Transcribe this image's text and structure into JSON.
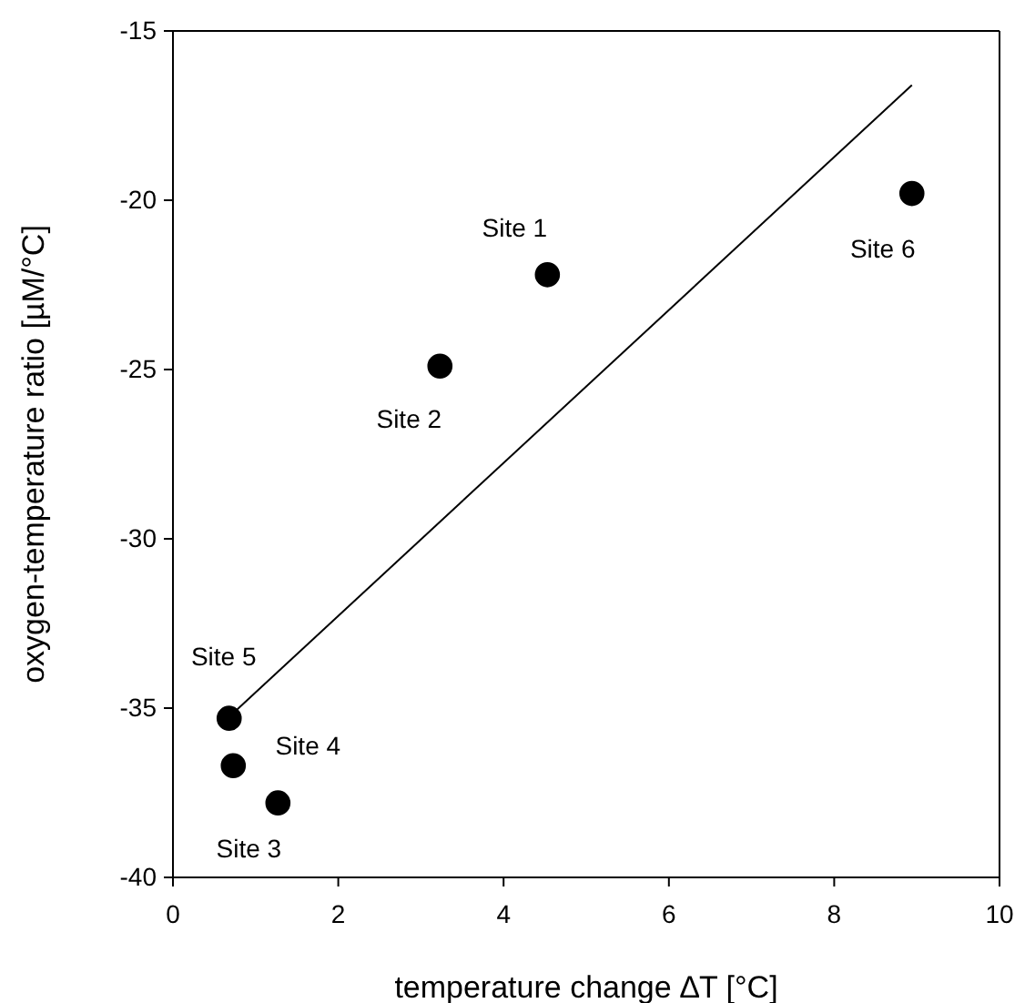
{
  "chart_data": {
    "type": "scatter",
    "xlabel": "temperature change ∆T [°C]",
    "ylabel": "oxygen-temperature ratio [µM/°C]",
    "xlim": [
      0,
      10
    ],
    "xticks": [
      0,
      2,
      4,
      6,
      8,
      10
    ],
    "ylim": [
      -40,
      -15
    ],
    "yticks": [
      -40,
      -35,
      -30,
      -25,
      -20,
      -15
    ],
    "grid": false,
    "marker": "circle",
    "series": [
      {
        "color": "#000000",
        "x": [
          4.53,
          3.23,
          1.27,
          0.73,
          0.68,
          8.94
        ],
        "values": [
          -22.2,
          -24.9,
          -37.8,
          -36.7,
          -35.3,
          -19.8
        ]
      },
      {
        "type": "line",
        "color": "#000000",
        "line_style": "solid",
        "marker": "none",
        "x": [
          0.75,
          8.94
        ],
        "values": [
          -35.1,
          -16.6
        ]
      }
    ],
    "annotations": [
      {
        "text": "Site 1",
        "x": 4.53,
        "y": -22.2
      },
      {
        "text": "Site 2",
        "x": 3.23,
        "y": -24.9
      },
      {
        "text": "Site 3",
        "x": 1.27,
        "y": -37.8
      },
      {
        "text": "Site 4",
        "x": 0.73,
        "y": -36.7
      },
      {
        "text": "Site 5",
        "x": 0.68,
        "y": -35.3
      },
      {
        "text": "Site 6",
        "x": 8.94,
        "y": -19.8
      }
    ]
  }
}
